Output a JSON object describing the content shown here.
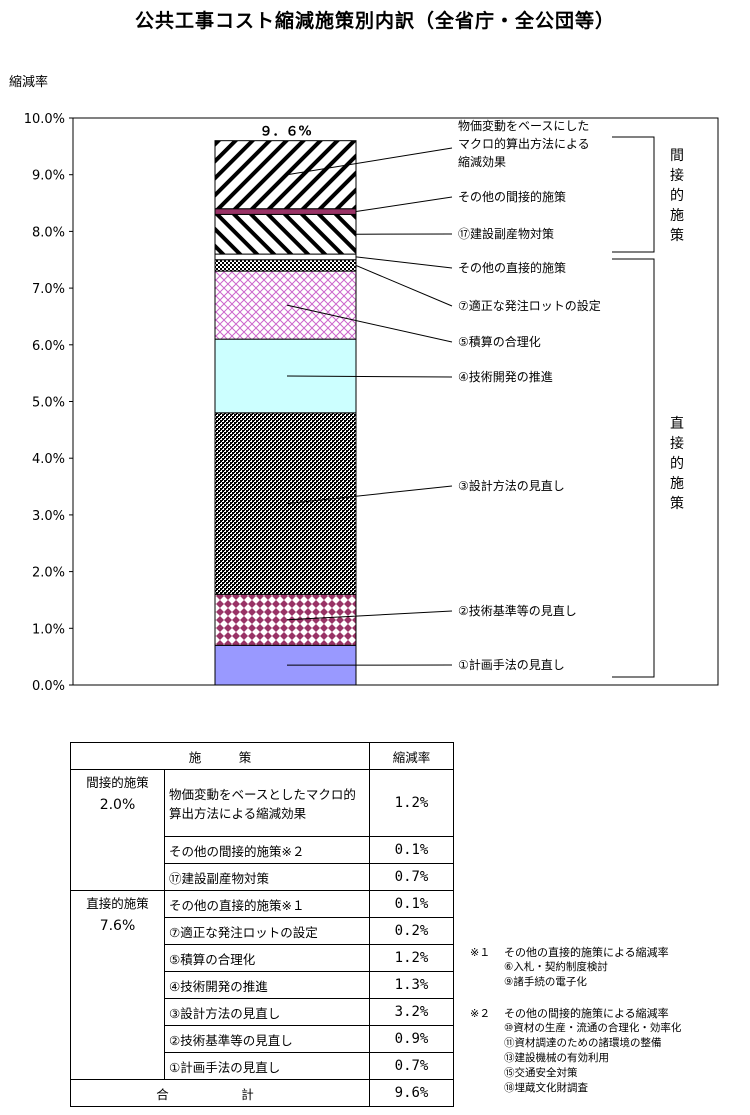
{
  "title": "公共工事コスト縮減施策別内訳（全省庁・全公団等）",
  "y_axis_title": "縮減率",
  "chart_data": {
    "type": "bar",
    "stacked": true,
    "ylim": [
      0,
      10
    ],
    "yticks": [
      "0.0%",
      "1.0%",
      "2.0%",
      "3.0%",
      "4.0%",
      "5.0%",
      "6.0%",
      "7.0%",
      "8.0%",
      "9.0%",
      "10.0%"
    ],
    "total_label": "９．６%",
    "series": [
      {
        "name": "①計画手法の見直し",
        "value": 0.7,
        "pattern": "solid",
        "color": "#9999ff"
      },
      {
        "name": "②技術基準等の見直し",
        "value": 0.9,
        "pattern": "diamond",
        "color": "#993366"
      },
      {
        "name": "③設計方法の見直し",
        "value": 3.2,
        "pattern": "checker",
        "color": "#000000"
      },
      {
        "name": "④技術開発の推進",
        "value": 1.3,
        "pattern": "solid",
        "color": "#ccffff"
      },
      {
        "name": "⑤積算の合理化",
        "value": 1.2,
        "pattern": "crosshatch",
        "color": "#cc66cc"
      },
      {
        "name": "⑦適正な発注ロットの設定",
        "value": 0.2,
        "pattern": "dots",
        "color": "#000000"
      },
      {
        "name": "その他の直接的施策",
        "value": 0.1,
        "pattern": "solid",
        "color": "#ffffff"
      },
      {
        "name": "⑰建設副産物対策",
        "value": 0.7,
        "pattern": "backslash",
        "color": "#000000"
      },
      {
        "name": "その他の間接的施策",
        "value": 0.1,
        "pattern": "solid",
        "color": "#993366"
      },
      {
        "name": "物価変動をベースにしたマクロ的算出方法による縮減効果",
        "value": 1.2,
        "pattern": "slash",
        "color": "#000000"
      }
    ],
    "callouts": [
      {
        "text": [
          "物価変動をベースにした",
          "マクロ的算出方法による",
          "縮減効果"
        ],
        "series_index": 9
      },
      {
        "text": [
          "その他の間接的施策"
        ],
        "series_index": 8
      },
      {
        "text": [
          "⑰建設副産物対策"
        ],
        "series_index": 7
      },
      {
        "text": [
          "その他の直接的施策"
        ],
        "series_index": 6
      },
      {
        "text": [
          "⑦適正な発注ロットの設定"
        ],
        "series_index": 5
      },
      {
        "text": [
          "⑤積算の合理化"
        ],
        "series_index": 4
      },
      {
        "text": [
          "④技術開発の推進"
        ],
        "series_index": 3
      },
      {
        "text": [
          "③設計方法の見直し"
        ],
        "series_index": 2
      },
      {
        "text": [
          "②技術基準等の見直し"
        ],
        "series_index": 1
      },
      {
        "text": [
          "①計画手法の見直し"
        ],
        "series_index": 0
      }
    ],
    "groups": [
      {
        "label": "間接的施策"
      },
      {
        "label": "直接的施策"
      }
    ]
  },
  "table": {
    "header_measure": "施　　　策",
    "header_rate": "縮減率",
    "groups": [
      {
        "name": "間接的施策",
        "rate": "2.0%",
        "items": [
          {
            "label": "物価変動をベースとしたマクロ的算出方法による縮減効果",
            "value": "1.2%"
          },
          {
            "label": "その他の間接的施策※２",
            "value": "0.1%"
          },
          {
            "label": "⑰建設副産物対策",
            "value": "0.7%"
          }
        ]
      },
      {
        "name": "直接的施策",
        "rate": "7.6%",
        "items": [
          {
            "label": "その他の直接的施策※１",
            "value": "0.1%"
          },
          {
            "label": "⑦適正な発注ロットの設定",
            "value": "0.2%"
          },
          {
            "label": "⑤積算の合理化",
            "value": "1.2%"
          },
          {
            "label": "④技術開発の推進",
            "value": "1.3%"
          },
          {
            "label": "③設計方法の見直し",
            "value": "3.2%"
          },
          {
            "label": "②技術基準等の見直し",
            "value": "0.9%"
          },
          {
            "label": "①計画手法の見直し",
            "value": "0.7%"
          }
        ]
      }
    ],
    "total_label": "合　計",
    "total_value": "9.6%"
  },
  "notes": [
    {
      "mark": "※１",
      "title": "その他の直接的施策による縮減率",
      "items": [
        "⑥入札・契約制度検討",
        "⑨諸手続の電子化"
      ]
    },
    {
      "mark": "※２",
      "title": "その他の間接的施策による縮減率",
      "items": [
        "⑩資材の生産・流通の合理化・効率化",
        "⑪資材調達のための諸環境の整備",
        "⑬建設機械の有効利用",
        "⑮交通安全対策",
        "⑱埋蔵文化財調査"
      ]
    }
  ]
}
